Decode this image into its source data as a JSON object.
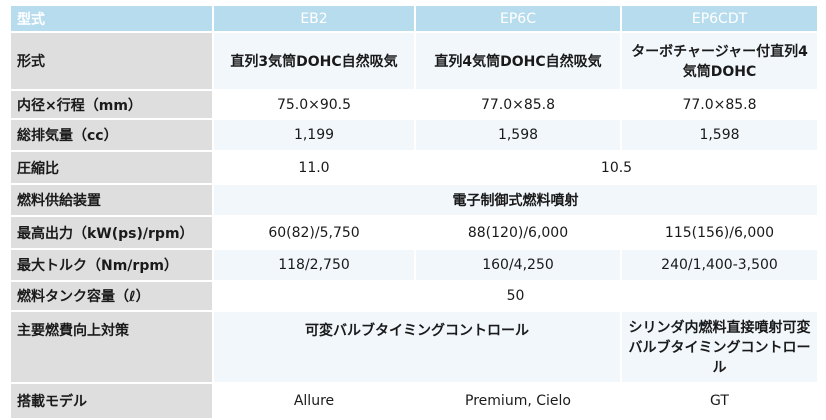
{
  "header": {
    "label": "型式",
    "col1": "EB2",
    "col2": "EP6C",
    "col3": "EP6CDT"
  },
  "rows": {
    "format": {
      "label": "形式",
      "col1": "直列3気筒DOHC自然吸気",
      "col2": "直列4気筒DOHC自然吸気",
      "col3": "ターボチャージャー付直列4気筒DOHC"
    },
    "bore_stroke": {
      "label": "内径×行程（mm）",
      "col1": "75.0×90.5",
      "col2": "77.0×85.8",
      "col3": "77.0×85.8"
    },
    "displacement": {
      "label": "総排気量（cc）",
      "col1": "1,199",
      "col2": "1,598",
      "col3": "1,598"
    },
    "compression": {
      "label": "圧縮比",
      "col1": "11.0",
      "col23": "10.5"
    },
    "fuel_system": {
      "label": "燃料供給装置",
      "value": "電子制御式燃料噴射"
    },
    "max_power": {
      "label": "最高出力（kW(ps)/rpm）",
      "col1": "60(82)/5,750",
      "col2": "88(120)/6,000",
      "col3": "115(156)/6,000"
    },
    "max_torque": {
      "label": "最大トルク（Nm/rpm）",
      "col1": "118/2,750",
      "col2": "160/4,250",
      "col3": "240/1,400-3,500"
    },
    "tank": {
      "label": "燃料タンク容量（ℓ）",
      "value": "50"
    },
    "fuel_economy": {
      "label": "主要燃費向上対策",
      "col12": "可変バルブタイミングコントロール",
      "col3": "シリンダ内燃料直接噴射可変バルブタイミングコントロール"
    },
    "model": {
      "label": "搭載モデル",
      "col1": "Allure",
      "col2": "Premium, Cielo",
      "col3": "GT"
    }
  }
}
